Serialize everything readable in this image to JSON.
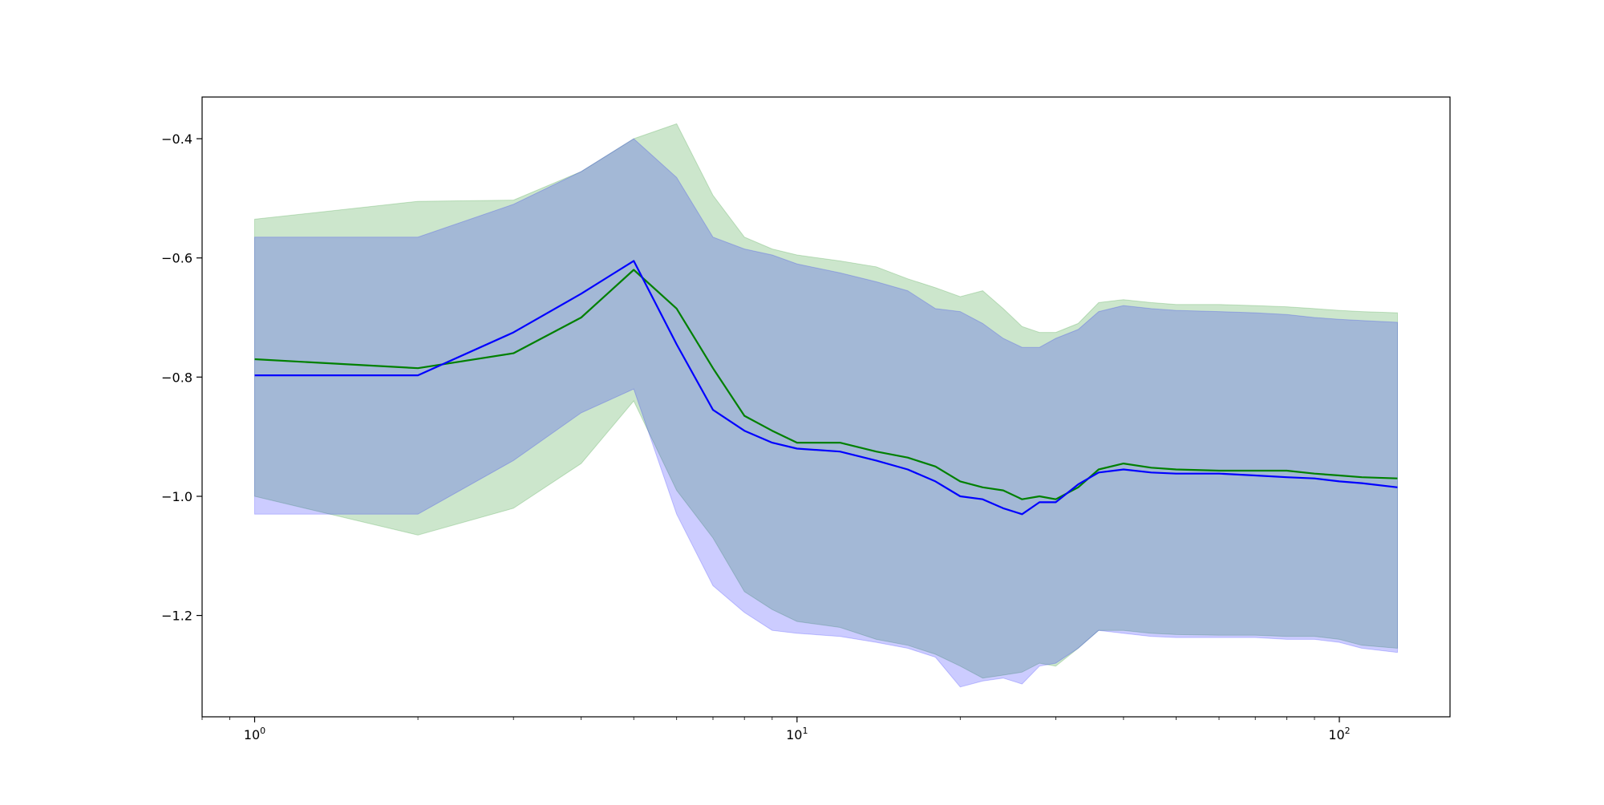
{
  "chart_data": {
    "type": "line",
    "title": "",
    "xlabel": "",
    "ylabel": "",
    "x_scale": "log",
    "xlim": [
      0.8,
      160
    ],
    "ylim": [
      -1.37,
      -0.33
    ],
    "grid": false,
    "legend": "none",
    "x_ticks": [
      {
        "value": 1,
        "base": "10",
        "exp": "0"
      },
      {
        "value": 10,
        "base": "10",
        "exp": "1"
      },
      {
        "value": 100,
        "base": "10",
        "exp": "2"
      }
    ],
    "y_ticks": [
      {
        "value": -0.4,
        "label": "−0.4"
      },
      {
        "value": -0.6,
        "label": "−0.6"
      },
      {
        "value": -0.8,
        "label": "−0.8"
      },
      {
        "value": -1.0,
        "label": "−1.0"
      },
      {
        "value": -1.2,
        "label": "−1.2"
      }
    ],
    "series": [
      {
        "color": "#008000",
        "band_color": "#008000",
        "band_opacity": 0.2,
        "x": [
          1,
          2,
          3,
          4,
          5,
          6,
          7,
          8,
          9,
          10,
          12,
          14,
          16,
          18,
          20,
          22,
          24,
          26,
          28,
          30,
          33,
          36,
          40,
          45,
          50,
          60,
          70,
          80,
          90,
          100,
          110,
          128
        ],
        "mean": [
          -0.77,
          -0.785,
          -0.76,
          -0.7,
          -0.62,
          -0.685,
          -0.785,
          -0.865,
          -0.89,
          -0.91,
          -0.91,
          -0.925,
          -0.935,
          -0.95,
          -0.975,
          -0.985,
          -0.99,
          -1.005,
          -1.0,
          -1.005,
          -0.985,
          -0.955,
          -0.945,
          -0.952,
          -0.955,
          -0.957,
          -0.957,
          -0.957,
          -0.962,
          -0.965,
          -0.968,
          -0.97
        ],
        "upper": [
          -0.535,
          -0.505,
          -0.503,
          -0.455,
          -0.4,
          -0.375,
          -0.495,
          -0.565,
          -0.585,
          -0.595,
          -0.605,
          -0.615,
          -0.635,
          -0.65,
          -0.665,
          -0.655,
          -0.685,
          -0.715,
          -0.725,
          -0.725,
          -0.71,
          -0.675,
          -0.67,
          -0.675,
          -0.678,
          -0.678,
          -0.68,
          -0.682,
          -0.685,
          -0.688,
          -0.69,
          -0.692
        ],
        "lower": [
          -1.0,
          -1.065,
          -1.02,
          -0.945,
          -0.84,
          -0.99,
          -1.07,
          -1.16,
          -1.19,
          -1.21,
          -1.22,
          -1.24,
          -1.25,
          -1.265,
          -1.285,
          -1.305,
          -1.3,
          -1.295,
          -1.28,
          -1.285,
          -1.255,
          -1.225,
          -1.225,
          -1.23,
          -1.232,
          -1.233,
          -1.233,
          -1.235,
          -1.235,
          -1.24,
          -1.25,
          -1.255
        ]
      },
      {
        "color": "#0000ff",
        "band_color": "#0000ff",
        "band_opacity": 0.2,
        "x": [
          1,
          2,
          3,
          4,
          5,
          6,
          7,
          8,
          9,
          10,
          12,
          14,
          16,
          18,
          20,
          22,
          24,
          26,
          28,
          30,
          33,
          36,
          40,
          45,
          50,
          60,
          70,
          80,
          90,
          100,
          110,
          128
        ],
        "mean": [
          -0.797,
          -0.797,
          -0.725,
          -0.66,
          -0.605,
          -0.745,
          -0.855,
          -0.89,
          -0.91,
          -0.92,
          -0.925,
          -0.94,
          -0.955,
          -0.975,
          -1.0,
          -1.005,
          -1.02,
          -1.03,
          -1.01,
          -1.01,
          -0.98,
          -0.96,
          -0.955,
          -0.96,
          -0.962,
          -0.962,
          -0.965,
          -0.968,
          -0.97,
          -0.975,
          -0.978,
          -0.985
        ],
        "upper": [
          -0.565,
          -0.565,
          -0.51,
          -0.455,
          -0.4,
          -0.465,
          -0.565,
          -0.585,
          -0.595,
          -0.61,
          -0.625,
          -0.64,
          -0.655,
          -0.685,
          -0.69,
          -0.71,
          -0.735,
          -0.75,
          -0.75,
          -0.735,
          -0.72,
          -0.69,
          -0.68,
          -0.685,
          -0.688,
          -0.69,
          -0.692,
          -0.695,
          -0.7,
          -0.703,
          -0.705,
          -0.708
        ],
        "lower": [
          -1.03,
          -1.03,
          -0.94,
          -0.86,
          -0.82,
          -1.03,
          -1.15,
          -1.195,
          -1.225,
          -1.23,
          -1.235,
          -1.245,
          -1.255,
          -1.27,
          -1.32,
          -1.31,
          -1.305,
          -1.315,
          -1.285,
          -1.28,
          -1.255,
          -1.225,
          -1.23,
          -1.235,
          -1.237,
          -1.237,
          -1.237,
          -1.24,
          -1.24,
          -1.245,
          -1.255,
          -1.262
        ]
      }
    ]
  }
}
